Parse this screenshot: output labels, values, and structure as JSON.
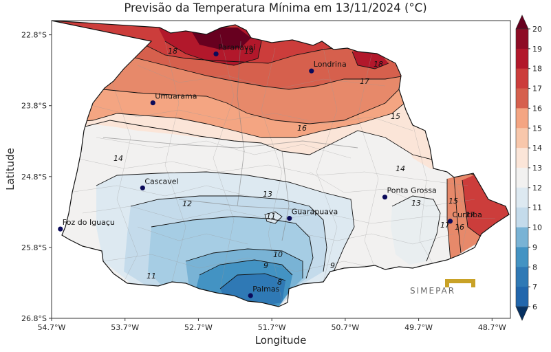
{
  "title": "Previsão da Temperatura Mínima em 13/11/2024 (°C)",
  "axes": {
    "xlabel": "Longitude",
    "ylabel": "Latitude",
    "xticks": [
      "54.7°W",
      "53.7°W",
      "52.7°W",
      "51.7°W",
      "50.7°W",
      "49.7°W",
      "48.7°W"
    ],
    "yticks": [
      "22.8°S",
      "23.8°S",
      "24.8°S",
      "25.8°S",
      "26.8°S"
    ]
  },
  "cities": [
    {
      "name": "Paranavaí",
      "lon": -52.46,
      "lat": -23.07
    },
    {
      "name": "Londrina",
      "lon": -51.16,
      "lat": -23.31
    },
    {
      "name": "Umuarama",
      "lon": -53.32,
      "lat": -23.76
    },
    {
      "name": "Cascavel",
      "lon": -53.46,
      "lat": -24.96
    },
    {
      "name": "Ponta Grossa",
      "lon": -50.16,
      "lat": -25.09
    },
    {
      "name": "Guarapuava",
      "lon": -51.46,
      "lat": -25.39
    },
    {
      "name": "Foz do Iguaçu",
      "lon": -54.58,
      "lat": -25.54
    },
    {
      "name": "Curitiba",
      "lon": -49.27,
      "lat": -25.43
    },
    {
      "name": "Palmas",
      "lon": -51.99,
      "lat": -26.48
    }
  ],
  "contour_labels": [
    "19",
    "18",
    "18",
    "17",
    "16",
    "15",
    "14",
    "14",
    "13",
    "13",
    "12",
    "11",
    "11",
    "10",
    "9",
    "9",
    "8",
    "15",
    "16",
    "17",
    "17"
  ],
  "colorbar": {
    "levels": [
      "20",
      "19",
      "18",
      "17",
      "16",
      "15",
      "14",
      "13",
      "12",
      "11",
      "10",
      "9",
      "8",
      "7",
      "6"
    ],
    "colors": [
      "#67001f",
      "#8e0c25",
      "#b2182b",
      "#cc3d3b",
      "#d6604d",
      "#e7896a",
      "#f4a582",
      "#f8c7ab",
      "#fbe5d8",
      "#f2f1f0",
      "#dde9f1",
      "#c4dbeb",
      "#a6cde4",
      "#79b3d5",
      "#4393c3",
      "#2f79b5",
      "#2166ac",
      "#053061"
    ]
  },
  "logo": {
    "text": "SIMEPAR"
  }
}
